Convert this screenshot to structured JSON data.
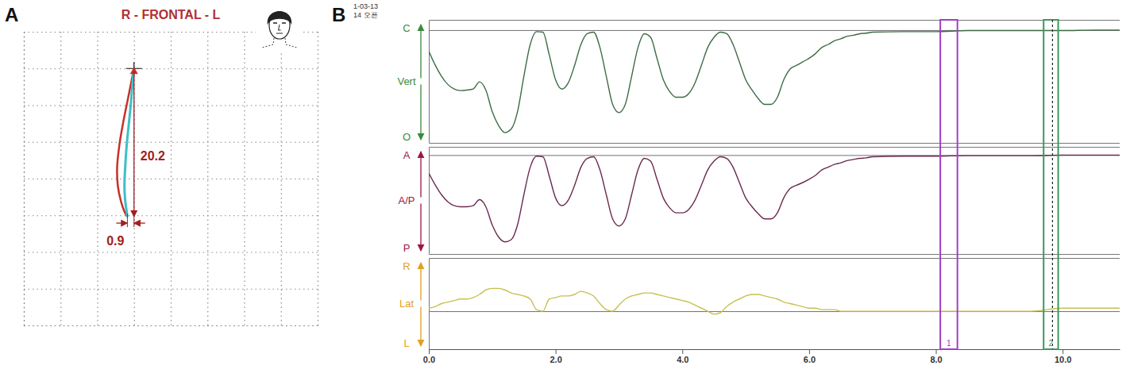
{
  "chart_data": [
    {
      "type": "line",
      "panel": "A",
      "title": "R - FRONTAL - L",
      "xlim": [
        -15,
        25
      ],
      "xticks": [
        -15,
        -10,
        -5,
        0,
        5,
        10,
        15,
        20,
        25
      ],
      "ylim": [
        -35,
        5
      ],
      "yticks": [
        -35,
        -30,
        -25,
        -20,
        -15,
        -10,
        -5,
        0,
        5
      ],
      "grid": true,
      "tick_labels": false,
      "opening": 20.2,
      "deviation": 0.9,
      "series": [
        {
          "color": "#c8302a",
          "x": [
            0,
            -0.4,
            -0.9,
            -1.5,
            -2.0,
            -2.3,
            -2.2,
            -1.8,
            -1.3,
            -0.9
          ],
          "values": [
            0,
            -2,
            -4.5,
            -7.5,
            -10.5,
            -13.5,
            -16,
            -18,
            -19.5,
            -20.2
          ]
        },
        {
          "color": "#3cc0c4",
          "x": [
            0,
            -0.2,
            -0.4,
            -0.7,
            -1.0,
            -1.2,
            -1.3,
            -1.2,
            -1.0,
            -0.9
          ],
          "values": [
            0,
            -2,
            -4.5,
            -7.5,
            -10.5,
            -13.5,
            -16,
            -18,
            -19.5,
            -20.2
          ]
        }
      ]
    },
    {
      "type": "line",
      "panel": "B",
      "header": [
        "1-03-13",
        "14 오픈"
      ],
      "x": [
        0,
        0.1,
        0.2,
        0.3,
        0.4,
        0.5,
        0.6,
        0.7,
        0.8,
        0.9,
        1,
        1.1,
        1.2,
        1.3,
        1.4,
        1.5,
        1.6,
        1.7,
        1.8,
        1.9,
        2,
        2.1,
        2.2,
        2.3,
        2.4,
        2.5,
        2.6,
        2.7,
        2.8,
        2.9,
        3,
        3.1,
        3.2,
        3.3,
        3.4,
        3.5,
        3.6,
        3.7,
        3.8,
        3.9,
        4,
        4.1,
        4.2,
        4.3,
        4.4,
        4.5,
        4.6,
        4.7,
        4.8,
        4.9,
        5,
        5.1,
        5.2,
        5.3,
        5.4,
        5.5,
        5.6,
        5.7,
        5.8,
        5.9,
        6,
        6.1,
        6.2,
        6.3,
        6.4,
        6.5,
        6.6,
        6.7,
        6.8,
        6.9,
        7,
        7.5,
        8,
        8.5,
        9,
        9.5,
        10,
        10.5,
        10.9
      ],
      "xlim": [
        0,
        10.9
      ],
      "xticks": [
        {
          "value": 0,
          "label": "0.0"
        },
        {
          "value": 2,
          "label": "2.0"
        },
        {
          "value": 4,
          "label": "4.0"
        },
        {
          "value": 6,
          "label": "6.0"
        },
        {
          "value": 8,
          "label": "8.0"
        },
        {
          "value": 10,
          "label": "10.0"
        }
      ],
      "grid": true,
      "tick_labels": "x",
      "markers": [
        {
          "label": "1",
          "x0": 8.07,
          "x1": 8.34,
          "color": "#a040c8"
        },
        {
          "label": "2",
          "x0": 9.7,
          "x1": 9.93,
          "x": 9.84,
          "color": "#3a9a5a"
        }
      ],
      "series": [
        {
          "ylabel": "Vert",
          "ylabel_top": "C",
          "ylabel_bottom": "O",
          "color": "#3f6b45",
          "ylim": [
            -22,
            2
          ],
          "yticks": [
            0
          ],
          "values": [
            -4.1,
            -6.8,
            -9.0,
            -10.6,
            -11.5,
            -11.8,
            -11.7,
            -11.5,
            -10.1,
            -11.7,
            -15.9,
            -18.6,
            -20.0,
            -19.3,
            -15.9,
            -9.0,
            -2.8,
            -0.3,
            -0.4,
            -4.8,
            -9.7,
            -11.5,
            -10.3,
            -6.9,
            -2.8,
            -0.7,
            -0.4,
            -3.4,
            -9.0,
            -14.5,
            -16.1,
            -14.5,
            -9.0,
            -3.4,
            -0.7,
            -1.4,
            -5.5,
            -9.7,
            -12.0,
            -13.1,
            -13.1,
            -12.4,
            -10.3,
            -6.9,
            -3.4,
            -1.4,
            -0.4,
            -0.7,
            -2.8,
            -6.2,
            -9.7,
            -11.7,
            -13.4,
            -14.5,
            -14.5,
            -13.1,
            -9.7,
            -7.6,
            -6.9,
            -6.2,
            -5.5,
            -4.6,
            -3.4,
            -2.8,
            -2.1,
            -1.7,
            -1.2,
            -1.0,
            -0.7,
            -0.6,
            -0.4,
            -0.3,
            -0.3,
            -0.1,
            -0.1,
            -0.1,
            -0.1,
            0,
            0
          ]
        },
        {
          "ylabel": "A/P",
          "ylabel_top": "A",
          "ylabel_bottom": "P",
          "color": "#6a2a50",
          "ylim": [
            -18,
            1.5
          ],
          "yticks": [
            0
          ],
          "values": [
            -3.3,
            -5.4,
            -7.2,
            -8.5,
            -9.2,
            -9.4,
            -9.4,
            -9.2,
            -8.1,
            -9.4,
            -12.7,
            -14.9,
            -15.8,
            -15.4,
            -12.7,
            -7.2,
            -2.2,
            -0.2,
            -0.3,
            -3.8,
            -7.8,
            -9.2,
            -8.2,
            -5.5,
            -2.2,
            -0.6,
            -0.3,
            -2.7,
            -7.2,
            -11.6,
            -12.9,
            -11.6,
            -7.2,
            -2.7,
            -0.6,
            -1.1,
            -4.4,
            -7.8,
            -9.6,
            -10.5,
            -10.5,
            -9.9,
            -8.2,
            -5.5,
            -2.7,
            -1.1,
            -0.3,
            -0.6,
            -2.2,
            -5.0,
            -7.8,
            -9.4,
            -10.7,
            -11.6,
            -11.6,
            -10.5,
            -7.8,
            -6.1,
            -5.5,
            -5.0,
            -4.4,
            -3.7,
            -2.7,
            -2.2,
            -1.7,
            -1.4,
            -1.0,
            -0.8,
            -0.6,
            -0.5,
            -0.3,
            -0.2,
            -0.2,
            -0.1,
            -0.1,
            -0.1,
            0,
            0,
            0
          ]
        },
        {
          "ylabel": "Lat",
          "ylabel_top": "R",
          "ylabel_bottom": "L",
          "color": "#c8c050",
          "ylim": [
            -2.5,
            3.5
          ],
          "yticks": [
            0
          ],
          "values": [
            0.2,
            0.3,
            0.5,
            0.6,
            0.7,
            0.8,
            0.8,
            0.9,
            1.1,
            1.4,
            1.5,
            1.5,
            1.4,
            1.2,
            1.1,
            1.0,
            0.8,
            0.1,
            0,
            0.8,
            0.9,
            1.0,
            1.0,
            1.1,
            1.3,
            1.2,
            1.0,
            0.5,
            0.1,
            0,
            0.4,
            0.8,
            1.0,
            1.1,
            1.2,
            1.2,
            1.1,
            1.0,
            0.9,
            0.8,
            0.7,
            0.6,
            0.4,
            0.2,
            0,
            -0.2,
            -0.1,
            0.3,
            0.6,
            0.8,
            1.0,
            1.1,
            1.1,
            1.0,
            0.9,
            0.8,
            0.6,
            0.5,
            0.4,
            0.3,
            0.2,
            0.2,
            0.1,
            0.1,
            0.1,
            0,
            0,
            0,
            0,
            0,
            0,
            0,
            0,
            0,
            0,
            0,
            0.2,
            0.2,
            0.2
          ]
        }
      ]
    }
  ]
}
